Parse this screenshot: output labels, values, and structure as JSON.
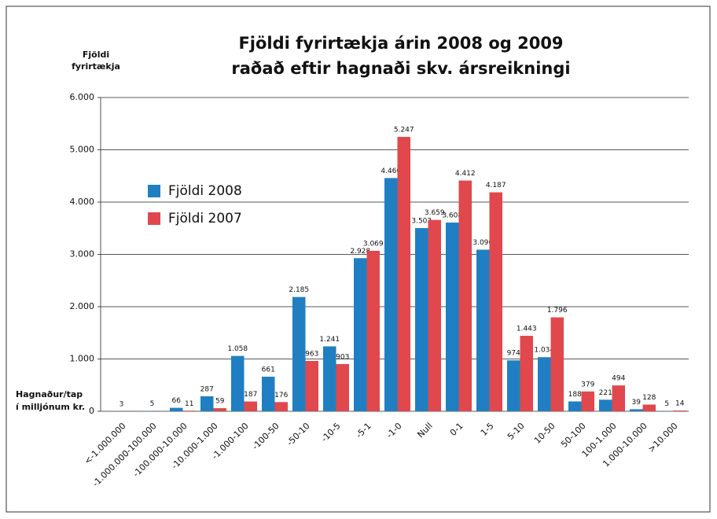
{
  "chart_data": {
    "type": "bar",
    "title": [
      "Fjöldi fyrirtækja árin 2008 og 2009",
      "raðað eftir hagnaði skv. ársreikningi"
    ],
    "ylabel": [
      "Fjöldi",
      "fyrirtækja"
    ],
    "xlabel": [
      "Hagnaður/tap",
      "í milljónum kr."
    ],
    "categories": [
      "<-1.000.000",
      "-1.000.000-100.000",
      "-100.000-10.000",
      "-10.000-1.000",
      "-1.000-100",
      "-100-50",
      "-50-10",
      "-10-5",
      "-5-1",
      "-1-0",
      "Null",
      "0-1",
      "1-5",
      "5-10",
      "10-50",
      "50-100",
      "100-1.000",
      "1.000-10.000",
      ">10.000"
    ],
    "series": [
      {
        "name": "Fjöldi 2008",
        "color": "#1f7fc2",
        "values": [
          3,
          5,
          66,
          287,
          1058,
          661,
          2185,
          1241,
          2928,
          4460,
          3503,
          3608,
          3090,
          974,
          1034,
          188,
          221,
          39,
          5
        ],
        "value_labels": [
          "3",
          "5",
          "66",
          "287",
          "1.058",
          "661",
          "2.185",
          "1.241",
          "2.928",
          "4.460",
          "3.503",
          "3.608",
          "3.090",
          "974",
          "1.034",
          "188",
          "221",
          "39",
          "5"
        ]
      },
      {
        "name": "Fjöldi 2007",
        "color": "#e0484d",
        "values": [
          null,
          null,
          11,
          59,
          187,
          176,
          963,
          903,
          3069,
          5247,
          3659,
          4412,
          4187,
          1443,
          1796,
          379,
          494,
          128,
          14
        ],
        "value_labels": [
          null,
          null,
          "11",
          "59",
          "187",
          "176",
          "963",
          "903",
          "3.069",
          "5.247",
          "3.659",
          "4.412",
          "4.187",
          "1.443",
          "1.796",
          "379",
          "494",
          "128",
          "14"
        ]
      }
    ],
    "ylim": [
      0,
      6000
    ],
    "yticks": [
      0,
      {
        "value": 1000,
        "label": "1.000"
      },
      {
        "value": 2000,
        "label": "2.000"
      },
      {
        "value": 3000,
        "label": "3.000"
      },
      {
        "value": 4000,
        "label": "4.000"
      },
      {
        "value": 5000,
        "label": "5.000"
      },
      {
        "value": 6000,
        "label": "6.000"
      }
    ],
    "grid": true,
    "legend": "upper left"
  }
}
